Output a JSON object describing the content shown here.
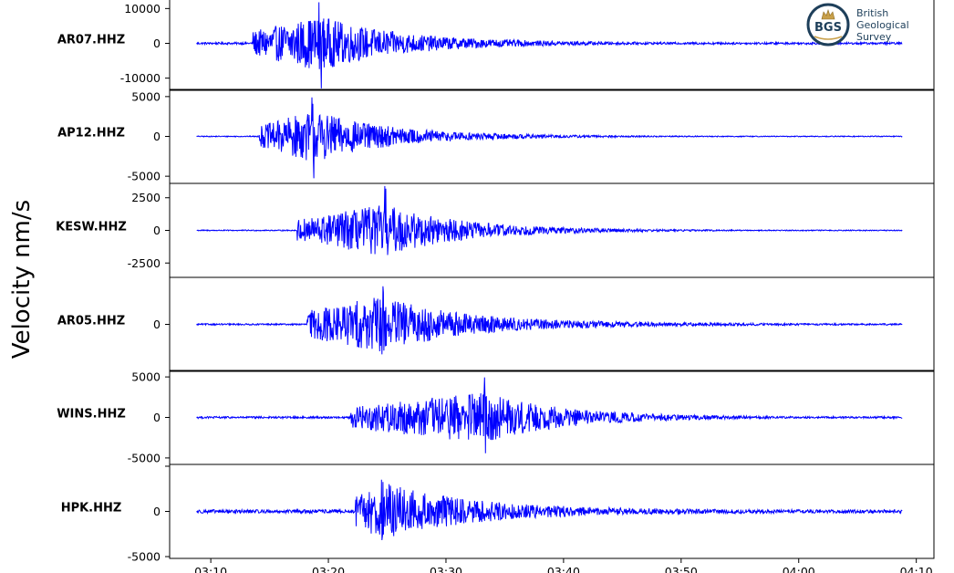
{
  "chart_data": {
    "type": "line",
    "ylabel": "Velocity nm/s",
    "x_tick_labels": [
      "03:10",
      "03:20",
      "03:30",
      "03:40",
      "03:50",
      "04:00",
      "04:10"
    ],
    "x_tick_minutes": [
      190,
      200,
      210,
      220,
      230,
      240,
      250
    ],
    "xlim_minutes": [
      186.5,
      251.5
    ],
    "trace_start_minutes": 188.8,
    "trace_end_minutes": 248.8,
    "line_color": "#0000ff",
    "logo": {
      "abbr": "BGS",
      "lines": [
        "British",
        "Geological",
        "Survey"
      ]
    },
    "panels": [
      {
        "station": "AR07.HHZ",
        "ylim": [
          -13500,
          13500
        ],
        "yticks": [
          10000,
          0,
          -10000
        ],
        "ytick_labels": [
          "10000",
          "0",
          "-10000"
        ],
        "onset_minutes": 193.6,
        "peak_minutes": 199.3,
        "peak_amplitude": 13000,
        "background_noise": 300,
        "coda_level": 1000
      },
      {
        "station": "AP12.HHZ",
        "ylim": [
          -5900,
          5900
        ],
        "yticks": [
          5000,
          0,
          -5000
        ],
        "ytick_labels": [
          "5000",
          "0",
          "-5000"
        ],
        "onset_minutes": 194.1,
        "peak_minutes": 198.7,
        "peak_amplitude": 5700,
        "background_noise": 60,
        "coda_level": 200
      },
      {
        "station": "KESW.HHZ",
        "ylim": [
          -3600,
          3600
        ],
        "yticks": [
          2500,
          0,
          -2500
        ],
        "ytick_labels": [
          "2500",
          "0",
          "-2500"
        ],
        "onset_minutes": 197.3,
        "peak_minutes": 204.8,
        "peak_amplitude": 3500,
        "background_noise": 40,
        "coda_level": 120
      },
      {
        "station": "AR05.HHZ",
        "ylim": [
          -5000,
          5000
        ],
        "yticks": [
          0
        ],
        "ytick_labels": [
          "0"
        ],
        "onset_minutes": 198.2,
        "peak_minutes": 204.6,
        "peak_amplitude": 4800,
        "background_noise": 80,
        "coda_level": 500
      },
      {
        "station": "WINS.HHZ",
        "ylim": [
          -5800,
          5800
        ],
        "yticks": [
          5000,
          0,
          -5000
        ],
        "ytick_labels": [
          "5000",
          "0",
          "-5000"
        ],
        "onset_minutes": 201.9,
        "peak_minutes": 213.3,
        "peak_amplitude": 5400,
        "background_noise": 120,
        "coda_level": 350
      },
      {
        "station": "HPK.HHZ",
        "ylim": [
          -5200,
          5200
        ],
        "yticks": [
          5000,
          0,
          -5000
        ],
        "ytick_labels": [
          "",
          "0",
          "-5000"
        ],
        "onset_minutes": 202.3,
        "peak_minutes": 204.6,
        "peak_amplitude": 4800,
        "background_noise": 200,
        "coda_level": 700
      }
    ]
  }
}
